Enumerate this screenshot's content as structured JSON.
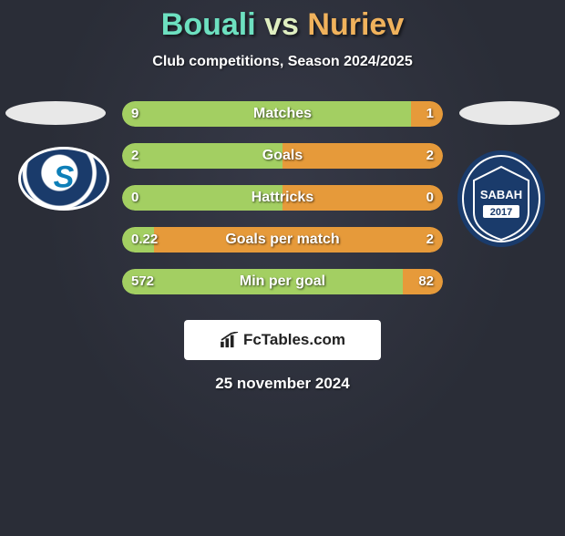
{
  "title": {
    "player1": "Bouali",
    "vs": "vs",
    "player2": "Nuriev",
    "p1_color": "#6de0c0",
    "vs_color": "#dfeec0",
    "p2_color": "#f0b25c"
  },
  "subtitle": "Club competitions, Season 2024/2025",
  "colors": {
    "bar_left": "#a3cf62",
    "bar_right": "#e69a3a",
    "bar_left_dim": "#a3cf62",
    "bar_right_dim": "#e69a3a"
  },
  "rows": [
    {
      "label": "Matches",
      "left_val": "9",
      "right_val": "1",
      "left_pct": 90,
      "right_pct": 10
    },
    {
      "label": "Goals",
      "left_val": "2",
      "right_val": "2",
      "left_pct": 50,
      "right_pct": 50
    },
    {
      "label": "Hattricks",
      "left_val": "0",
      "right_val": "0",
      "left_pct": 50,
      "right_pct": 50
    },
    {
      "label": "Goals per match",
      "left_val": "0.22",
      "right_val": "2",
      "left_pct": 10,
      "right_pct": 90
    },
    {
      "label": "Min per goal",
      "left_val": "572",
      "right_val": "82",
      "left_pct": 87.5,
      "right_pct": 12.5
    }
  ],
  "branding": {
    "text": "FcTables.com"
  },
  "date": "25 november 2024",
  "crests": {
    "left_label": "S",
    "right_label": "SABAH",
    "right_year": "2017"
  }
}
